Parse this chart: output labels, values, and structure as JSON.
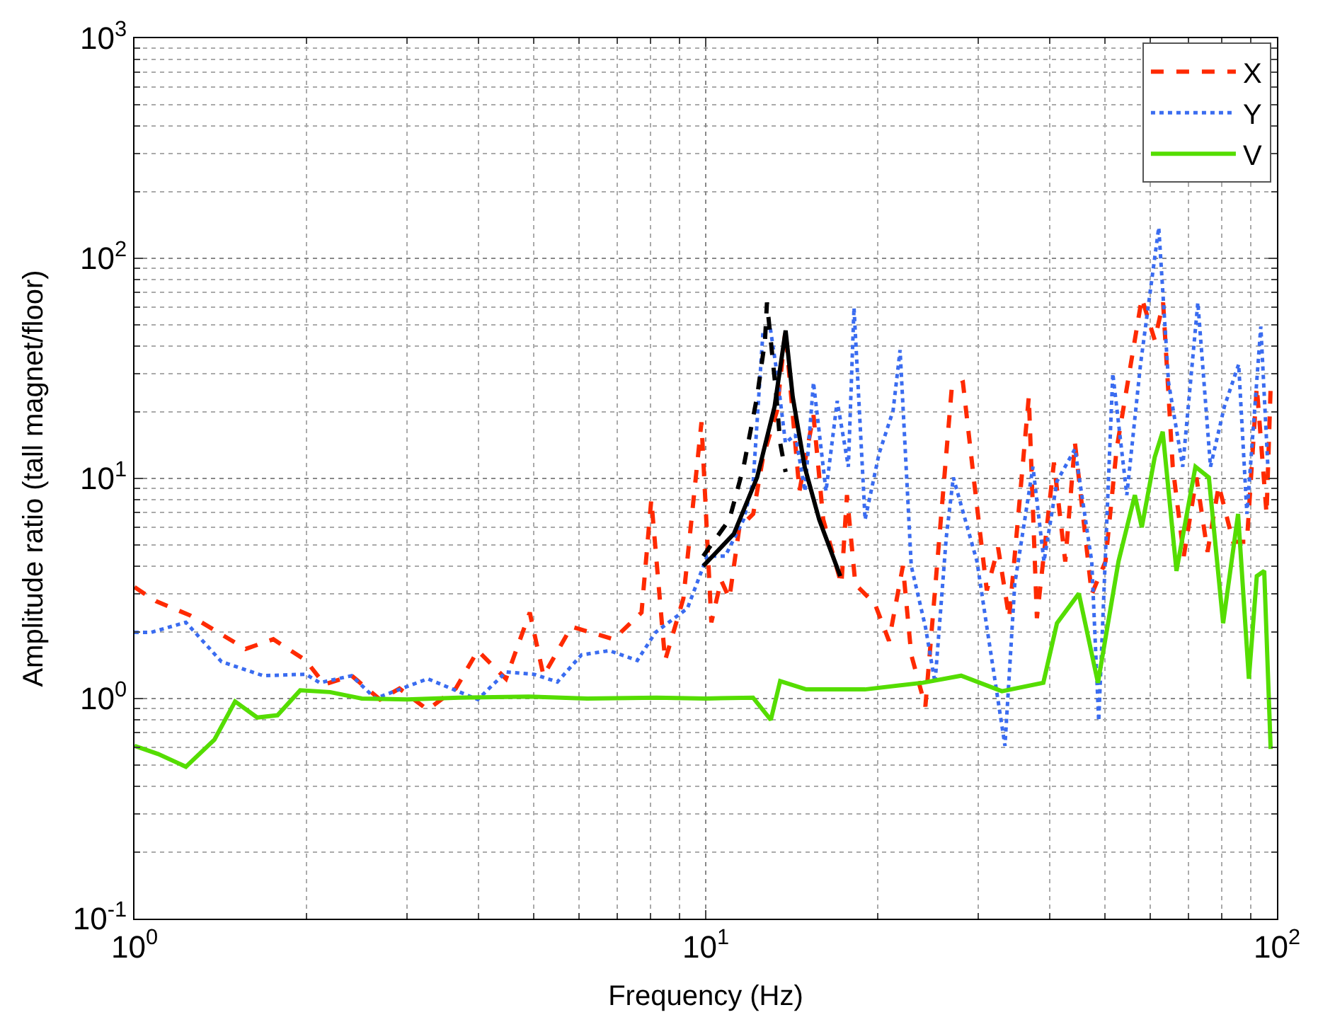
{
  "chart_data": {
    "type": "line",
    "xlabel": "Frequency (Hz)",
    "ylabel": "Amplitude ratio (tall magnet/floor)",
    "log": "xy",
    "grid": true,
    "legend": "top right",
    "xlim": [
      1,
      100
    ],
    "ylim": [
      0.1,
      1000
    ],
    "xticks": [
      {
        "value": 1,
        "label": "10$^{0}$"
      },
      {
        "value": 10,
        "label": "10$^{1}$"
      },
      {
        "value": 100,
        "label": "10$^{2}$"
      }
    ],
    "yticks": [
      {
        "value": 0.1,
        "label": "10$^{-1}$"
      },
      {
        "value": 1,
        "label": "10$^{0}$"
      },
      {
        "value": 10,
        "label": "10$^{1}$"
      },
      {
        "value": 100,
        "label": "10$^{2}$"
      },
      {
        "value": 1000,
        "label": "10$^{3}$"
      }
    ],
    "series": [
      {
        "name": "X",
        "color": "#ff2a00",
        "line_style": "dashed",
        "x": [
          1.0,
          1.09,
          1.25,
          1.565,
          1.75,
          1.995,
          2.15,
          2.4,
          2.69,
          2.91,
          3.26,
          3.65,
          3.99,
          4.47,
          4.92,
          5.2,
          5.82,
          6.9,
          7.72,
          8.03,
          8.49,
          9.14,
          9.83,
          10.23,
          10.64,
          11.0,
          11.45,
          12.11,
          12.6,
          13.33,
          13.79,
          14.59,
          15.44,
          16.06,
          17.28,
          17.67,
          18.28,
          19.78,
          20.93,
          22.14,
          22.9,
          24.24,
          26.97,
          28.2,
          29.5,
          31.05,
          32.5,
          33.98,
          36.78,
          38.0,
          40.7,
          42.6,
          44.3,
          47.4,
          50.1,
          52.4,
          58.0,
          61.1,
          63.2,
          65.7,
          68.7,
          72.3,
          75.6,
          79.1,
          83.8,
          88.6,
          92.2,
          95.9,
          97.5
        ],
        "values": [
          3.21,
          2.77,
          2.39,
          1.68,
          1.86,
          1.49,
          1.16,
          1.27,
          0.99,
          1.11,
          0.89,
          1.11,
          1.65,
          1.23,
          2.46,
          1.27,
          2.12,
          1.86,
          2.46,
          8.0,
          1.49,
          2.85,
          18.0,
          2.22,
          3.45,
          2.85,
          5.97,
          6.9,
          12.5,
          20.3,
          47.1,
          8.75,
          19.4,
          6.5,
          3.3,
          8.4,
          3.3,
          2.69,
          1.83,
          4.0,
          1.58,
          0.92,
          26.1,
          27.3,
          9.7,
          3.1,
          4.85,
          2.32,
          23.5,
          2.32,
          11.8,
          4.19,
          14.5,
          2.98,
          4.19,
          13.6,
          66,
          42.5,
          63,
          11.3,
          4.44,
          10.1,
          4.64,
          9.3,
          5.15,
          5.15,
          26.1,
          6.9,
          26.1
        ]
      },
      {
        "name": "Y",
        "color": "#3a6cf0",
        "line_style": "dotted",
        "x": [
          1.0,
          1.07,
          1.23,
          1.42,
          1.68,
          1.995,
          2.11,
          2.4,
          2.64,
          3.26,
          3.99,
          4.47,
          5.0,
          5.5,
          6.06,
          6.78,
          7.59,
          8.17,
          9.29,
          10.06,
          10.82,
          11.65,
          12.11,
          12.6,
          12.96,
          13.33,
          13.79,
          14.35,
          14.92,
          15.44,
          16.24,
          16.99,
          17.77,
          18.18,
          19.01,
          20.12,
          21.28,
          21.89,
          22.9,
          24.24,
          25.2,
          26.37,
          27.13,
          29.85,
          31.05,
          33.41,
          34.75,
          37.4,
          39.1,
          41.2,
          44.3,
          47.4,
          48.75,
          51.6,
          54.6,
          57.7,
          62.1,
          64.6,
          68.4,
          72.7,
          76.5,
          80.9,
          85.7,
          88.6,
          93.7,
          96.4
        ],
        "values": [
          2.0,
          2.0,
          2.22,
          1.47,
          1.27,
          1.29,
          1.18,
          1.27,
          1.0,
          1.23,
          0.99,
          1.32,
          1.29,
          1.19,
          1.58,
          1.65,
          1.49,
          2.0,
          2.57,
          4.44,
          4.44,
          6.5,
          9.7,
          47,
          49,
          30,
          14.5,
          15.8,
          8.75,
          27.3,
          8.75,
          22.5,
          11.3,
          59.7,
          6.5,
          13.0,
          20.3,
          38.3,
          4.0,
          2.12,
          1.18,
          5.4,
          10.1,
          4.19,
          2.12,
          0.61,
          3.3,
          11.3,
          4.19,
          9.7,
          13.6,
          4.19,
          0.79,
          30,
          8.4,
          33,
          138,
          27.3,
          11.3,
          63,
          11.3,
          21.2,
          33,
          6.9,
          49,
          11.3
        ]
      },
      {
        "name": "V",
        "color": "#55dd00",
        "line_style": "solid",
        "x": [
          1.0,
          1.1,
          1.23,
          1.38,
          1.5,
          1.64,
          1.78,
          1.95,
          2.2,
          2.5,
          3.0,
          3.7,
          4.9,
          6.2,
          8.2,
          10,
          12.1,
          13,
          13.5,
          15,
          19,
          24,
          28,
          33,
          39,
          41.2,
          45,
          48.6,
          52.8,
          56.4,
          58,
          61.1,
          63.1,
          66.7,
          72,
          76,
          80.5,
          85.5,
          89.3,
          92.2,
          95,
          97.5
        ],
        "values": [
          0.61,
          0.56,
          0.49,
          0.65,
          0.97,
          0.82,
          0.84,
          1.09,
          1.07,
          1.0,
          0.99,
          1.01,
          1.02,
          1.0,
          1.01,
          1.0,
          1.01,
          0.8,
          1.2,
          1.1,
          1.1,
          1.18,
          1.27,
          1.08,
          1.18,
          2.2,
          3.0,
          1.18,
          4.2,
          8.4,
          6.0,
          12.5,
          16.3,
          3.8,
          11.3,
          10.1,
          2.2,
          6.9,
          1.23,
          3.6,
          3.8,
          0.59
        ]
      },
      {
        "color": "#000000",
        "line_style": "dashed",
        "x": [
          9.9,
          11.0,
          11.65,
          12.3,
          12.7,
          12.8,
          13.3,
          13.5,
          13.8
        ],
        "values": [
          4.44,
          6.5,
          11.3,
          23.5,
          42.5,
          63,
          23.5,
          14.5,
          10.7
        ]
      },
      {
        "color": "#000000",
        "line_style": "solid",
        "x": [
          9.9,
          11.2,
          12.3,
          13.2,
          13.8,
          14.2,
          14.9,
          15.8,
          17.2
        ],
        "values": [
          4.0,
          5.6,
          10.1,
          21.2,
          47,
          23.5,
          11.3,
          6.5,
          3.6
        ]
      }
    ]
  }
}
